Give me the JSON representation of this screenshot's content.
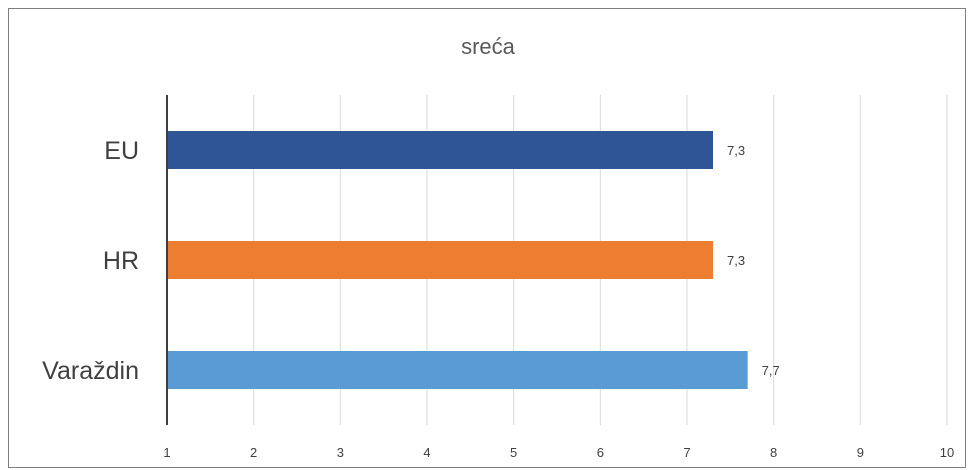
{
  "chart_data": {
    "type": "bar",
    "orientation": "horizontal",
    "title": "sreća",
    "xlabel": "",
    "ylabel": "",
    "categories": [
      "EU",
      "HR",
      "Varaždin"
    ],
    "values": [
      7.3,
      7.3,
      7.7
    ],
    "data_labels": [
      "7,3",
      "7,3",
      "7,7"
    ],
    "colors": [
      "#2f5597",
      "#ed7d31",
      "#5b9bd5"
    ],
    "xlim": [
      1,
      10
    ],
    "ticks": [
      1,
      2,
      3,
      4,
      5,
      6,
      7,
      8,
      9,
      10
    ],
    "grid": true,
    "legend": "none"
  }
}
